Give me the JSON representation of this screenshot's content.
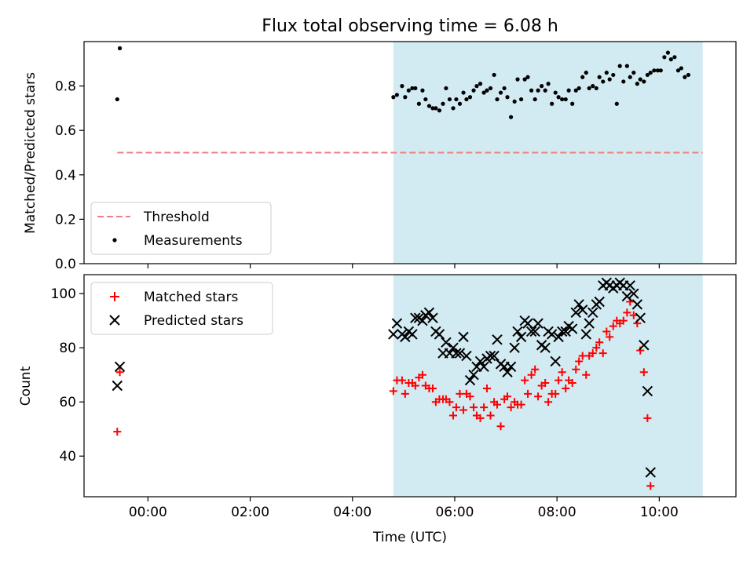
{
  "chart_data": [
    {
      "type": "scatter",
      "title": "Flux total observing time = 6.08 h",
      "ylabel": "Matched/Predicted stars",
      "xlabel": "",
      "xlim": [
        -1.25,
        11.5
      ],
      "ylim": [
        0,
        1.0
      ],
      "y_ticks": [
        "0.0",
        "0.2",
        "0.4",
        "0.6",
        "0.8"
      ],
      "grid": false,
      "legend_position": "lower-left",
      "shaded_span": [
        4.8,
        10.85
      ],
      "threshold": {
        "name": "Threshold",
        "value": 0.5,
        "x_range": [
          -0.6,
          10.85
        ],
        "color": "#f08080",
        "style": "dashed"
      },
      "series": [
        {
          "name": "Measurements",
          "marker": "dot",
          "color": "#000000",
          "points": [
            [
              -0.6,
              0.74
            ],
            [
              -0.55,
              0.97
            ],
            [
              4.8,
              0.75
            ],
            [
              4.87,
              0.76
            ],
            [
              4.97,
              0.8
            ],
            [
              5.03,
              0.75
            ],
            [
              5.1,
              0.78
            ],
            [
              5.17,
              0.79
            ],
            [
              5.23,
              0.79
            ],
            [
              5.3,
              0.72
            ],
            [
              5.37,
              0.78
            ],
            [
              5.43,
              0.74
            ],
            [
              5.5,
              0.71
            ],
            [
              5.57,
              0.7
            ],
            [
              5.63,
              0.7
            ],
            [
              5.7,
              0.69
            ],
            [
              5.77,
              0.72
            ],
            [
              5.83,
              0.79
            ],
            [
              5.9,
              0.74
            ],
            [
              5.97,
              0.7
            ],
            [
              6.03,
              0.74
            ],
            [
              6.1,
              0.72
            ],
            [
              6.17,
              0.77
            ],
            [
              6.23,
              0.74
            ],
            [
              6.3,
              0.75
            ],
            [
              6.37,
              0.78
            ],
            [
              6.43,
              0.8
            ],
            [
              6.5,
              0.81
            ],
            [
              6.57,
              0.77
            ],
            [
              6.63,
              0.78
            ],
            [
              6.7,
              0.79
            ],
            [
              6.77,
              0.85
            ],
            [
              6.83,
              0.74
            ],
            [
              6.9,
              0.77
            ],
            [
              6.97,
              0.79
            ],
            [
              7.03,
              0.75
            ],
            [
              7.1,
              0.66
            ],
            [
              7.17,
              0.73
            ],
            [
              7.23,
              0.83
            ],
            [
              7.3,
              0.74
            ],
            [
              7.37,
              0.83
            ],
            [
              7.43,
              0.84
            ],
            [
              7.5,
              0.78
            ],
            [
              7.57,
              0.74
            ],
            [
              7.63,
              0.78
            ],
            [
              7.7,
              0.8
            ],
            [
              7.77,
              0.78
            ],
            [
              7.83,
              0.81
            ],
            [
              7.9,
              0.72
            ],
            [
              7.97,
              0.77
            ],
            [
              8.03,
              0.75
            ],
            [
              8.1,
              0.74
            ],
            [
              8.17,
              0.74
            ],
            [
              8.23,
              0.78
            ],
            [
              8.3,
              0.72
            ],
            [
              8.37,
              0.78
            ],
            [
              8.43,
              0.79
            ],
            [
              8.5,
              0.84
            ],
            [
              8.57,
              0.86
            ],
            [
              8.63,
              0.79
            ],
            [
              8.7,
              0.8
            ],
            [
              8.77,
              0.79
            ],
            [
              8.83,
              0.84
            ],
            [
              8.9,
              0.82
            ],
            [
              8.97,
              0.86
            ],
            [
              9.03,
              0.83
            ],
            [
              9.1,
              0.85
            ],
            [
              9.17,
              0.72
            ],
            [
              9.23,
              0.89
            ],
            [
              9.3,
              0.82
            ],
            [
              9.37,
              0.89
            ],
            [
              9.43,
              0.84
            ],
            [
              9.5,
              0.86
            ],
            [
              9.57,
              0.81
            ],
            [
              9.63,
              0.83
            ],
            [
              9.7,
              0.82
            ],
            [
              9.77,
              0.85
            ],
            [
              9.83,
              0.86
            ],
            [
              9.9,
              0.87
            ],
            [
              9.97,
              0.87
            ],
            [
              10.03,
              0.87
            ],
            [
              10.1,
              0.93
            ],
            [
              10.17,
              0.95
            ],
            [
              10.23,
              0.92
            ],
            [
              10.3,
              0.93
            ],
            [
              10.37,
              0.87
            ],
            [
              10.43,
              0.88
            ],
            [
              10.5,
              0.84
            ],
            [
              10.57,
              0.85
            ]
          ]
        }
      ]
    },
    {
      "type": "scatter",
      "title": "",
      "ylabel": "Count",
      "xlabel": "Time (UTC)",
      "xlim": [
        -1.25,
        11.5
      ],
      "ylim": [
        25,
        107
      ],
      "x_ticks": [
        {
          "value": 0,
          "label": "00:00"
        },
        {
          "value": 2,
          "label": "02:00"
        },
        {
          "value": 4,
          "label": "04:00"
        },
        {
          "value": 6,
          "label": "06:00"
        },
        {
          "value": 8,
          "label": "08:00"
        },
        {
          "value": 10,
          "label": "10:00"
        }
      ],
      "y_ticks": [
        "40",
        "60",
        "80",
        "100"
      ],
      "grid": false,
      "legend_position": "upper-left",
      "shaded_span": [
        4.8,
        10.85
      ],
      "series": [
        {
          "name": "Matched stars",
          "marker": "plus",
          "color": "#ff0000",
          "points": [
            [
              -0.6,
              49
            ],
            [
              -0.55,
              71
            ],
            [
              4.8,
              64
            ],
            [
              4.87,
              68
            ],
            [
              4.97,
              68
            ],
            [
              5.03,
              63
            ],
            [
              5.1,
              67
            ],
            [
              5.17,
              67
            ],
            [
              5.23,
              66
            ],
            [
              5.3,
              69
            ],
            [
              5.37,
              70
            ],
            [
              5.43,
              66
            ],
            [
              5.5,
              65
            ],
            [
              5.57,
              65
            ],
            [
              5.63,
              60
            ],
            [
              5.7,
              61
            ],
            [
              5.77,
              61
            ],
            [
              5.83,
              61
            ],
            [
              5.9,
              60
            ],
            [
              5.97,
              55
            ],
            [
              6.03,
              58
            ],
            [
              6.1,
              63
            ],
            [
              6.17,
              57
            ],
            [
              6.23,
              63
            ],
            [
              6.3,
              62
            ],
            [
              6.37,
              58
            ],
            [
              6.43,
              55
            ],
            [
              6.5,
              54
            ],
            [
              6.57,
              58
            ],
            [
              6.63,
              65
            ],
            [
              6.7,
              55
            ],
            [
              6.77,
              60
            ],
            [
              6.83,
              59
            ],
            [
              6.9,
              51
            ],
            [
              6.97,
              61
            ],
            [
              7.03,
              62
            ],
            [
              7.1,
              58
            ],
            [
              7.17,
              60
            ],
            [
              7.23,
              59
            ],
            [
              7.3,
              59
            ],
            [
              7.37,
              68
            ],
            [
              7.43,
              63
            ],
            [
              7.5,
              70
            ],
            [
              7.57,
              72
            ],
            [
              7.63,
              62
            ],
            [
              7.7,
              66
            ],
            [
              7.77,
              67
            ],
            [
              7.83,
              60
            ],
            [
              7.9,
              63
            ],
            [
              7.97,
              63
            ],
            [
              8.03,
              68
            ],
            [
              8.1,
              71
            ],
            [
              8.17,
              65
            ],
            [
              8.23,
              68
            ],
            [
              8.3,
              67
            ],
            [
              8.37,
              72
            ],
            [
              8.43,
              75
            ],
            [
              8.5,
              77
            ],
            [
              8.57,
              70
            ],
            [
              8.63,
              77
            ],
            [
              8.7,
              78
            ],
            [
              8.77,
              80
            ],
            [
              8.83,
              82
            ],
            [
              8.9,
              78
            ],
            [
              8.97,
              86
            ],
            [
              9.03,
              84
            ],
            [
              9.1,
              88
            ],
            [
              9.17,
              90
            ],
            [
              9.23,
              89
            ],
            [
              9.3,
              90
            ],
            [
              9.37,
              93
            ],
            [
              9.43,
              97
            ],
            [
              9.5,
              92
            ],
            [
              9.57,
              89
            ],
            [
              9.63,
              79
            ],
            [
              9.7,
              71
            ],
            [
              9.77,
              54
            ],
            [
              9.83,
              29
            ]
          ]
        },
        {
          "name": "Predicted stars",
          "marker": "x",
          "color": "#000000",
          "points": [
            [
              -0.6,
              66
            ],
            [
              -0.55,
              73
            ],
            [
              4.8,
              85
            ],
            [
              4.87,
              89
            ],
            [
              4.97,
              85
            ],
            [
              5.03,
              84
            ],
            [
              5.1,
              86
            ],
            [
              5.17,
              85
            ],
            [
              5.23,
              91
            ],
            [
              5.3,
              91
            ],
            [
              5.37,
              90
            ],
            [
              5.43,
              92
            ],
            [
              5.5,
              93
            ],
            [
              5.57,
              91
            ],
            [
              5.63,
              86
            ],
            [
              5.7,
              85
            ],
            [
              5.77,
              78
            ],
            [
              5.83,
              82
            ],
            [
              5.9,
              78
            ],
            [
              5.97,
              80
            ],
            [
              6.03,
              78
            ],
            [
              6.1,
              78
            ],
            [
              6.17,
              84
            ],
            [
              6.23,
              77
            ],
            [
              6.3,
              68
            ],
            [
              6.37,
              70
            ],
            [
              6.43,
              73
            ],
            [
              6.5,
              75
            ],
            [
              6.57,
              73
            ],
            [
              6.63,
              76
            ],
            [
              6.7,
              77
            ],
            [
              6.77,
              77
            ],
            [
              6.83,
              83
            ],
            [
              6.9,
              74
            ],
            [
              6.97,
              73
            ],
            [
              7.03,
              71
            ],
            [
              7.1,
              73
            ],
            [
              7.17,
              80
            ],
            [
              7.23,
              86
            ],
            [
              7.3,
              84
            ],
            [
              7.37,
              90
            ],
            [
              7.43,
              89
            ],
            [
              7.5,
              86
            ],
            [
              7.57,
              86
            ],
            [
              7.63,
              89
            ],
            [
              7.7,
              81
            ],
            [
              7.77,
              80
            ],
            [
              7.83,
              86
            ],
            [
              7.9,
              85
            ],
            [
              7.97,
              75
            ],
            [
              8.03,
              84
            ],
            [
              8.1,
              86
            ],
            [
              8.17,
              86
            ],
            [
              8.23,
              88
            ],
            [
              8.3,
              87
            ],
            [
              8.37,
              93
            ],
            [
              8.43,
              96
            ],
            [
              8.5,
              94
            ],
            [
              8.57,
              85
            ],
            [
              8.63,
              89
            ],
            [
              8.7,
              93
            ],
            [
              8.77,
              96
            ],
            [
              8.83,
              97
            ],
            [
              8.9,
              103
            ],
            [
              8.97,
              104
            ],
            [
              9.03,
              103
            ],
            [
              9.1,
              102
            ],
            [
              9.17,
              103
            ],
            [
              9.23,
              104
            ],
            [
              9.3,
              103
            ],
            [
              9.37,
              99
            ],
            [
              9.43,
              103
            ],
            [
              9.5,
              100
            ],
            [
              9.57,
              96
            ],
            [
              9.63,
              91
            ],
            [
              9.7,
              81
            ],
            [
              9.77,
              64
            ],
            [
              9.83,
              34
            ]
          ]
        }
      ]
    }
  ]
}
